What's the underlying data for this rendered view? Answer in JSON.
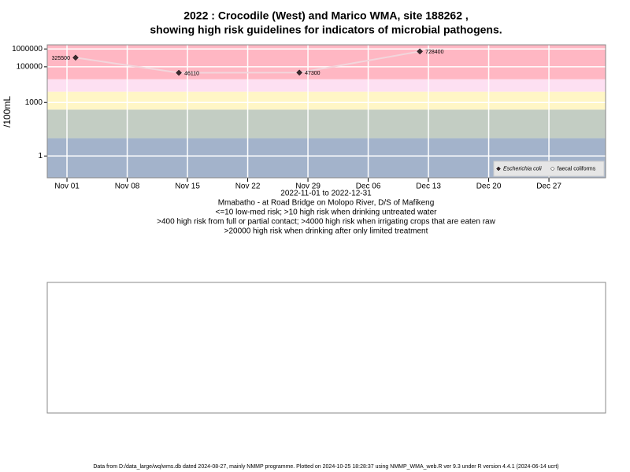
{
  "chart_data": {
    "type": "line",
    "title": "2022 : Crocodile (West) and Marico WMA, site 188262 ,",
    "title2": "showing high risk guidelines for indicators of microbial pathogens.",
    "x_label": "2022-11-01 to 2022-12-31",
    "subtitle_lines": [
      "Mmabatho - at Road Bridge on Molopo River, D/S of Mafikeng",
      "<=10 low-med risk; >10 high risk when drinking untreated water",
      ">400 high risk from full or partial contact; >4000 high risk when irrigating crops that are eaten raw",
      ">20000 high risk when drinking after only limited treatment"
    ],
    "y_label": "/100mL",
    "log_y": true,
    "ylim": [
      0.06,
      1700000
    ],
    "yticks": [
      1,
      1000,
      100000,
      1000000
    ],
    "xlim": [
      "2022-10-29T17:00",
      "2023-01-02T14:00"
    ],
    "xticks": [
      {
        "value": "2022-11-01",
        "label": "Nov 01"
      },
      {
        "value": "2022-11-08",
        "label": "Nov 08"
      },
      {
        "value": "2022-11-15",
        "label": "Nov 15"
      },
      {
        "value": "2022-11-22",
        "label": "Nov 22"
      },
      {
        "value": "2022-11-29",
        "label": "Nov 29"
      },
      {
        "value": "2022-12-06",
        "label": "Dec 06"
      },
      {
        "value": "2022-12-13",
        "label": "Dec 13"
      },
      {
        "value": "2022-12-20",
        "label": "Dec 20"
      },
      {
        "value": "2022-12-27",
        "label": "Dec 27"
      }
    ],
    "grid": true,
    "risk_limits": [
      10,
      400,
      4000,
      20000
    ],
    "band_colors": [
      "#a3b3cb",
      "#c3cdc3",
      "#fff6c6",
      "#fde0f2",
      "#ffb7c3"
    ],
    "x": [
      "2022-11-02",
      "2022-11-14",
      "2022-11-28",
      "2022-12-12"
    ],
    "series": [
      {
        "name": "Escherichia coli",
        "color": "#3a2a2e",
        "line_color": "#f2d6dc",
        "values": [
          325500,
          46110,
          47300,
          728400
        ]
      },
      {
        "name": "faecal coliforms",
        "color": "#ffffff",
        "line_color": "#ffffff",
        "values": [
          null,
          null,
          null,
          null
        ]
      }
    ],
    "legend": "bottom-right",
    "footer": "Data from D:/data_large/wq/wms.db dated 2024-08-27, mainly NMMP programme. Plotted on 2024-10-25 18:28:37 using NMMP_WMA_web.R ver 9.3 under R version 4.4.1 (2024-06-14 ucrt)"
  }
}
